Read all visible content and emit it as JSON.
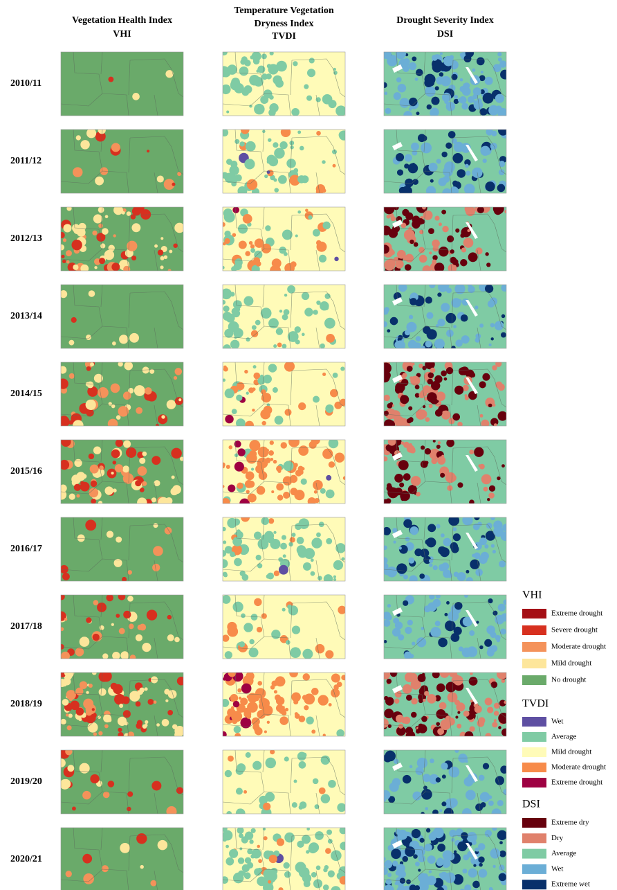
{
  "column_headers": [
    {
      "lines": [
        "Vegetation Health Index",
        "VHI"
      ]
    },
    {
      "lines": [
        "Temperature Vegetation",
        "Dryness Index",
        "TVDI"
      ]
    },
    {
      "lines": [
        "Drought Severity Index",
        "DSI"
      ]
    }
  ],
  "rows": [
    "2010/11",
    "2011/12",
    "2012/13",
    "2013/14",
    "2014/15",
    "2015/16",
    "2016/17",
    "2017/18",
    "2018/19",
    "2019/20",
    "2020/21"
  ],
  "legend": [
    {
      "title": "VHI",
      "items": [
        {
          "label": "Extreme drought",
          "color": "#a50f15"
        },
        {
          "label": "Severe drought",
          "color": "#d7301f"
        },
        {
          "label": "Moderate drought",
          "color": "#f4925a"
        },
        {
          "label": "Mild drought",
          "color": "#fde69b"
        },
        {
          "label": "No drought",
          "color": "#6aaa6a"
        }
      ]
    },
    {
      "title": "TVDI",
      "items": [
        {
          "label": "Wet",
          "color": "#5e4fa2"
        },
        {
          "label": "Average",
          "color": "#7fcba4"
        },
        {
          "label": "Mild drought",
          "color": "#fffbb8"
        },
        {
          "label": "Moderate drought",
          "color": "#f78b4a"
        },
        {
          "label": "Extreme drought",
          "color": "#9e0142"
        }
      ]
    },
    {
      "title": "DSI",
      "items": [
        {
          "label": "Extreme dry",
          "color": "#67000d"
        },
        {
          "label": "Dry",
          "color": "#e0816c"
        },
        {
          "label": "Average",
          "color": "#7fcba4"
        },
        {
          "label": "Wet",
          "color": "#6baed6"
        },
        {
          "label": "Extreme wet",
          "color": "#08306b"
        }
      ]
    }
  ]
}
